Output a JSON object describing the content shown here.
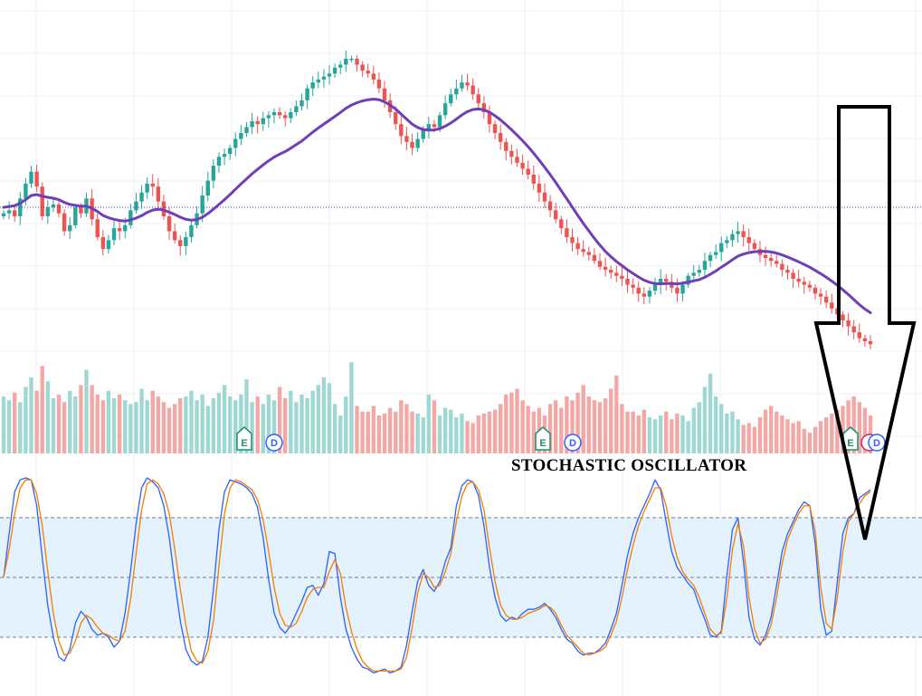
{
  "colors": {
    "background": "#ffffff",
    "grid": "#eef0f3",
    "up_candle": "#26a69a",
    "down_candle": "#ef5350",
    "up_volume": "#9fd8d2",
    "down_volume": "#f4a8a6",
    "ma_line": "#6f3fb8",
    "price_line": "#3b43c9",
    "k_line": "#2962ff",
    "d_line": "#f57c00",
    "stoch_band": "#e3f2fd",
    "stoch_level": "#787b86",
    "arrow": "#000000",
    "earnings_badge": "#1e8f6e",
    "dividend_badge": "#2962ff",
    "split_badge": "#d81b60"
  },
  "annotation": {
    "title": "STOCHASTIC OSCILLATOR"
  },
  "events": {
    "earnings": {
      "icon": "earnings-icon",
      "label": "E"
    },
    "dividend": {
      "icon": "dividend-icon",
      "label": "D"
    },
    "split": {
      "icon": "split-icon",
      "label": ""
    }
  },
  "chart_data": [
    {
      "type": "candlestick",
      "panel": "price",
      "title": "",
      "grid": true,
      "series": [
        {
          "kind": "ohlc",
          "close": [
            70,
            71,
            69,
            75,
            80,
            84,
            79,
            69,
            72,
            73,
            70,
            64,
            66,
            72,
            70,
            75,
            68,
            62,
            58,
            61,
            65,
            64,
            66,
            71,
            74,
            77,
            80,
            79,
            74,
            69,
            64,
            61,
            59,
            62,
            66,
            70,
            76,
            81,
            86,
            89,
            90,
            92,
            95,
            97,
            99,
            101,
            100,
            102,
            103,
            104,
            103,
            102,
            104,
            106,
            108,
            112,
            114,
            115,
            116,
            117,
            119,
            120,
            122,
            122,
            120,
            118,
            117,
            115,
            112,
            108,
            104,
            100,
            96,
            94,
            92,
            95,
            98,
            100,
            99,
            103,
            107,
            110,
            112,
            114,
            113,
            110,
            107,
            104,
            100,
            97,
            94,
            91,
            89,
            87,
            85,
            83,
            80,
            77,
            74,
            71,
            68,
            65,
            62,
            60,
            58,
            57,
            56,
            54,
            52,
            51,
            50,
            49,
            48,
            46,
            45,
            43,
            42,
            44,
            46,
            48,
            47,
            45,
            43,
            46,
            49,
            50,
            51,
            54,
            56,
            57,
            60,
            61,
            63,
            64,
            62,
            60,
            58,
            56,
            55,
            54,
            53,
            51,
            50,
            48,
            47,
            46,
            45,
            43,
            42,
            40,
            38,
            36,
            34,
            32,
            30,
            28,
            27,
            26
          ],
          "mark_style": "candles, green up / red down"
        },
        {
          "name": "",
          "kind": "moving_average",
          "values": [
            72,
            72.3,
            72.6,
            73.4,
            74.6,
            76,
            76.3,
            75.8,
            75.4,
            75.1,
            74.6,
            73.7,
            73,
            72.7,
            72.4,
            72.4,
            71.7,
            70.6,
            69.3,
            68.5,
            68,
            67.6,
            67.4,
            67.8,
            68.4,
            69.2,
            70.3,
            71.1,
            71.4,
            71.1,
            70.4,
            69.6,
            68.7,
            68,
            67.7,
            67.9,
            68.7,
            69.9,
            71.4,
            73,
            74.6,
            76.3,
            78.1,
            79.9,
            81.6,
            83.3,
            84.8,
            86.3,
            87.7,
            88.9,
            89.9,
            90.8,
            91.9,
            93.1,
            94.3,
            95.8,
            97.3,
            98.7,
            100,
            101.3,
            102.6,
            103.9,
            105.3,
            106.4,
            107.2,
            107.8,
            108.2,
            108.4,
            108.2,
            107.5,
            106.4,
            105.1,
            103.4,
            101.7,
            100,
            98.9,
            98.2,
            98,
            98,
            98.5,
            99.3,
            100.4,
            101.7,
            103.1,
            104.2,
            104.9,
            105.1,
            104.8,
            104,
            102.8,
            101.4,
            99.8,
            98.1,
            96.3,
            94.4,
            92.4,
            90.2,
            87.9,
            85.5,
            83,
            80.4,
            77.6,
            74.9,
            72.1,
            69.3,
            66.6,
            64.1,
            61.6,
            59.3,
            57.2,
            55.4,
            53.8,
            52.4,
            51,
            49.8,
            48.6,
            47.5,
            46.8,
            46.4,
            46.3,
            46.4,
            46.4,
            46.3,
            46.5,
            46.9,
            47.3,
            47.7,
            48.5,
            49.5,
            50.6,
            51.9,
            53.1,
            54.4,
            55.6,
            56.3,
            56.8,
            57.1,
            57.2,
            57.2,
            57,
            56.6,
            56,
            55.3,
            54.5,
            53.7,
            52.8,
            51.9,
            50.8,
            49.7,
            48.5,
            47.2,
            45.8,
            44.3,
            42.7,
            41,
            39.3,
            37.8,
            36.6
          ]
        }
      ]
    },
    {
      "type": "bar",
      "panel": "volume",
      "title": "",
      "series": [
        {
          "name": "",
          "values": [
            30,
            28,
            32,
            27,
            35,
            40,
            33,
            46,
            38,
            29,
            31,
            27,
            33,
            30,
            36,
            44,
            36,
            31,
            28,
            33,
            29,
            31,
            28,
            26,
            27,
            34,
            28,
            33,
            30,
            27,
            24,
            26,
            29,
            30,
            33,
            28,
            31,
            25,
            29,
            32,
            36,
            30,
            28,
            31,
            39,
            27,
            30,
            26,
            31,
            28,
            35,
            29,
            33,
            27,
            31,
            29,
            33,
            36,
            40,
            37,
            26,
            20,
            30,
            48,
            25,
            22,
            22,
            25,
            20,
            21,
            24,
            22,
            28,
            26,
            22,
            21,
            19,
            31,
            28,
            20,
            24,
            23,
            19,
            21,
            17,
            16,
            20,
            21,
            22,
            23,
            26,
            31,
            32,
            34,
            28,
            25,
            22,
            24,
            20,
            26,
            28,
            24,
            30,
            28,
            32,
            36,
            30,
            28,
            27,
            29,
            34,
            41,
            26,
            22,
            22,
            20,
            23,
            19,
            18,
            20,
            22,
            18,
            21,
            20,
            17,
            24,
            27,
            35,
            42,
            30,
            26,
            21,
            22,
            18,
            15,
            16,
            14,
            19,
            23,
            25,
            22,
            20,
            18,
            16,
            17,
            13,
            11,
            14,
            17,
            19,
            21,
            23,
            25,
            28,
            30,
            27,
            24,
            20
          ]
        }
      ]
    },
    {
      "type": "line",
      "panel": "stochastic",
      "title": "STOCHASTIC OSCILLATOR",
      "ylim": [
        0,
        100
      ],
      "levels": [
        80,
        50,
        20
      ],
      "band": [
        20,
        80
      ],
      "series": [
        {
          "name": "",
          "values": [
            50,
            72,
            93,
            99,
            100,
            99,
            86,
            60,
            36,
            20,
            10,
            8,
            14,
            27,
            33,
            30,
            24,
            21,
            22,
            20,
            15,
            18,
            32,
            53,
            77,
            95,
            100,
            98,
            95,
            86,
            70,
            48,
            28,
            14,
            8,
            6,
            8,
            20,
            44,
            74,
            93,
            99,
            98,
            97,
            95,
            92,
            85,
            70,
            49,
            32,
            25,
            22,
            26,
            32,
            38,
            45,
            46,
            41,
            47,
            63,
            62,
            40,
            24,
            15,
            9,
            5,
            4,
            2,
            3,
            4,
            2,
            3,
            5,
            16,
            33,
            48,
            54,
            46,
            43,
            48,
            58,
            65,
            86,
            96,
            99,
            98,
            91,
            76,
            55,
            40,
            31,
            28,
            30,
            29,
            32,
            34,
            34,
            35,
            37,
            34,
            30,
            24,
            19,
            17,
            13,
            11,
            12,
            12,
            14,
            17,
            24,
            32,
            46,
            61,
            72,
            80,
            86,
            92,
            99,
            94,
            78,
            63,
            55,
            51,
            47,
            44,
            36,
            29,
            21,
            20,
            23,
            51,
            74,
            80,
            58,
            30,
            19,
            16,
            21,
            30,
            46,
            63,
            72,
            78,
            84,
            88,
            86,
            67,
            34,
            21,
            23,
            48,
            72,
            80,
            82,
            90,
            92,
            94
          ]
        },
        {
          "name": "",
          "values": [
            50,
            64,
            82,
            95,
            99,
            99,
            92,
            76,
            53,
            32,
            18,
            11,
            12,
            18,
            27,
            31,
            29,
            25,
            22,
            21,
            19,
            18,
            23,
            39,
            62,
            84,
            97,
            99,
            97,
            92,
            82,
            64,
            44,
            26,
            13,
            8,
            7,
            13,
            28,
            56,
            82,
            95,
            99,
            98,
            96,
            94,
            89,
            79,
            63,
            45,
            32,
            26,
            25,
            27,
            33,
            40,
            44,
            45,
            45,
            53,
            59,
            52,
            35,
            23,
            14,
            8,
            5,
            3,
            3,
            3,
            3,
            3,
            4,
            10,
            25,
            42,
            52,
            50,
            45,
            46,
            53,
            62,
            78,
            91,
            97,
            98,
            94,
            84,
            65,
            48,
            36,
            31,
            29,
            29,
            30,
            32,
            33,
            34,
            36,
            35,
            32,
            26,
            21,
            18,
            15,
            12,
            11,
            12,
            13,
            15,
            21,
            28,
            40,
            54,
            66,
            76,
            83,
            89,
            95,
            95,
            86,
            71,
            60,
            53,
            49,
            46,
            40,
            32,
            24,
            21,
            22,
            40,
            64,
            77,
            66,
            40,
            24,
            17,
            19,
            26,
            40,
            57,
            69,
            76,
            82,
            86,
            86,
            73,
            45,
            27,
            24,
            40,
            63,
            78,
            82,
            87,
            91,
            93
          ]
        }
      ]
    }
  ]
}
